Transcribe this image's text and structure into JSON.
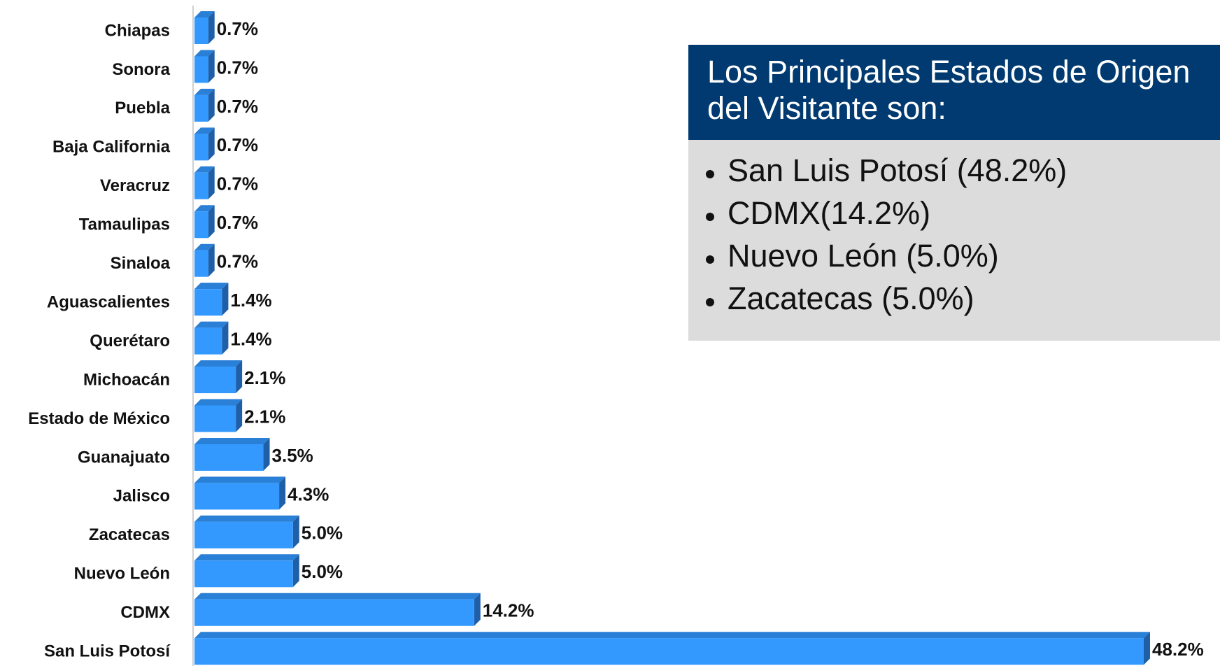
{
  "chart_data": {
    "type": "bar",
    "orientation": "horizontal",
    "categories": [
      "Chiapas",
      "Sonora",
      "Puebla",
      "Baja California",
      "Veracruz",
      "Tamaulipas",
      "Sinaloa",
      "Aguascalientes",
      "Querétaro",
      "Michoacán",
      "Estado de México",
      "Guanajuato",
      "Jalisco",
      "Zacatecas",
      "Nuevo León",
      "CDMX",
      "San Luis Potosí"
    ],
    "values": [
      0.7,
      0.7,
      0.7,
      0.7,
      0.7,
      0.7,
      0.7,
      1.4,
      1.4,
      2.1,
      2.1,
      3.5,
      4.3,
      5.0,
      5.0,
      14.2,
      48.2
    ],
    "value_labels": [
      "0.7%",
      "0.7%",
      "0.7%",
      "0.7%",
      "0.7%",
      "0.7%",
      "0.7%",
      "1.4%",
      "1.4%",
      "2.1%",
      "2.1%",
      "3.5%",
      "4.3%",
      "5.0%",
      "5.0%",
      "14.2%",
      "48.2%"
    ],
    "color": "#3399ff",
    "annotation_title": [
      "Los Principales Estados de Origen",
      "del Visitante son:"
    ],
    "annotations": [
      "San Luis Potosí (48.2%)",
      "CDMX(14.2%)",
      "Nuevo León (5.0%)",
      "Zacatecas (5.0%)"
    ]
  }
}
